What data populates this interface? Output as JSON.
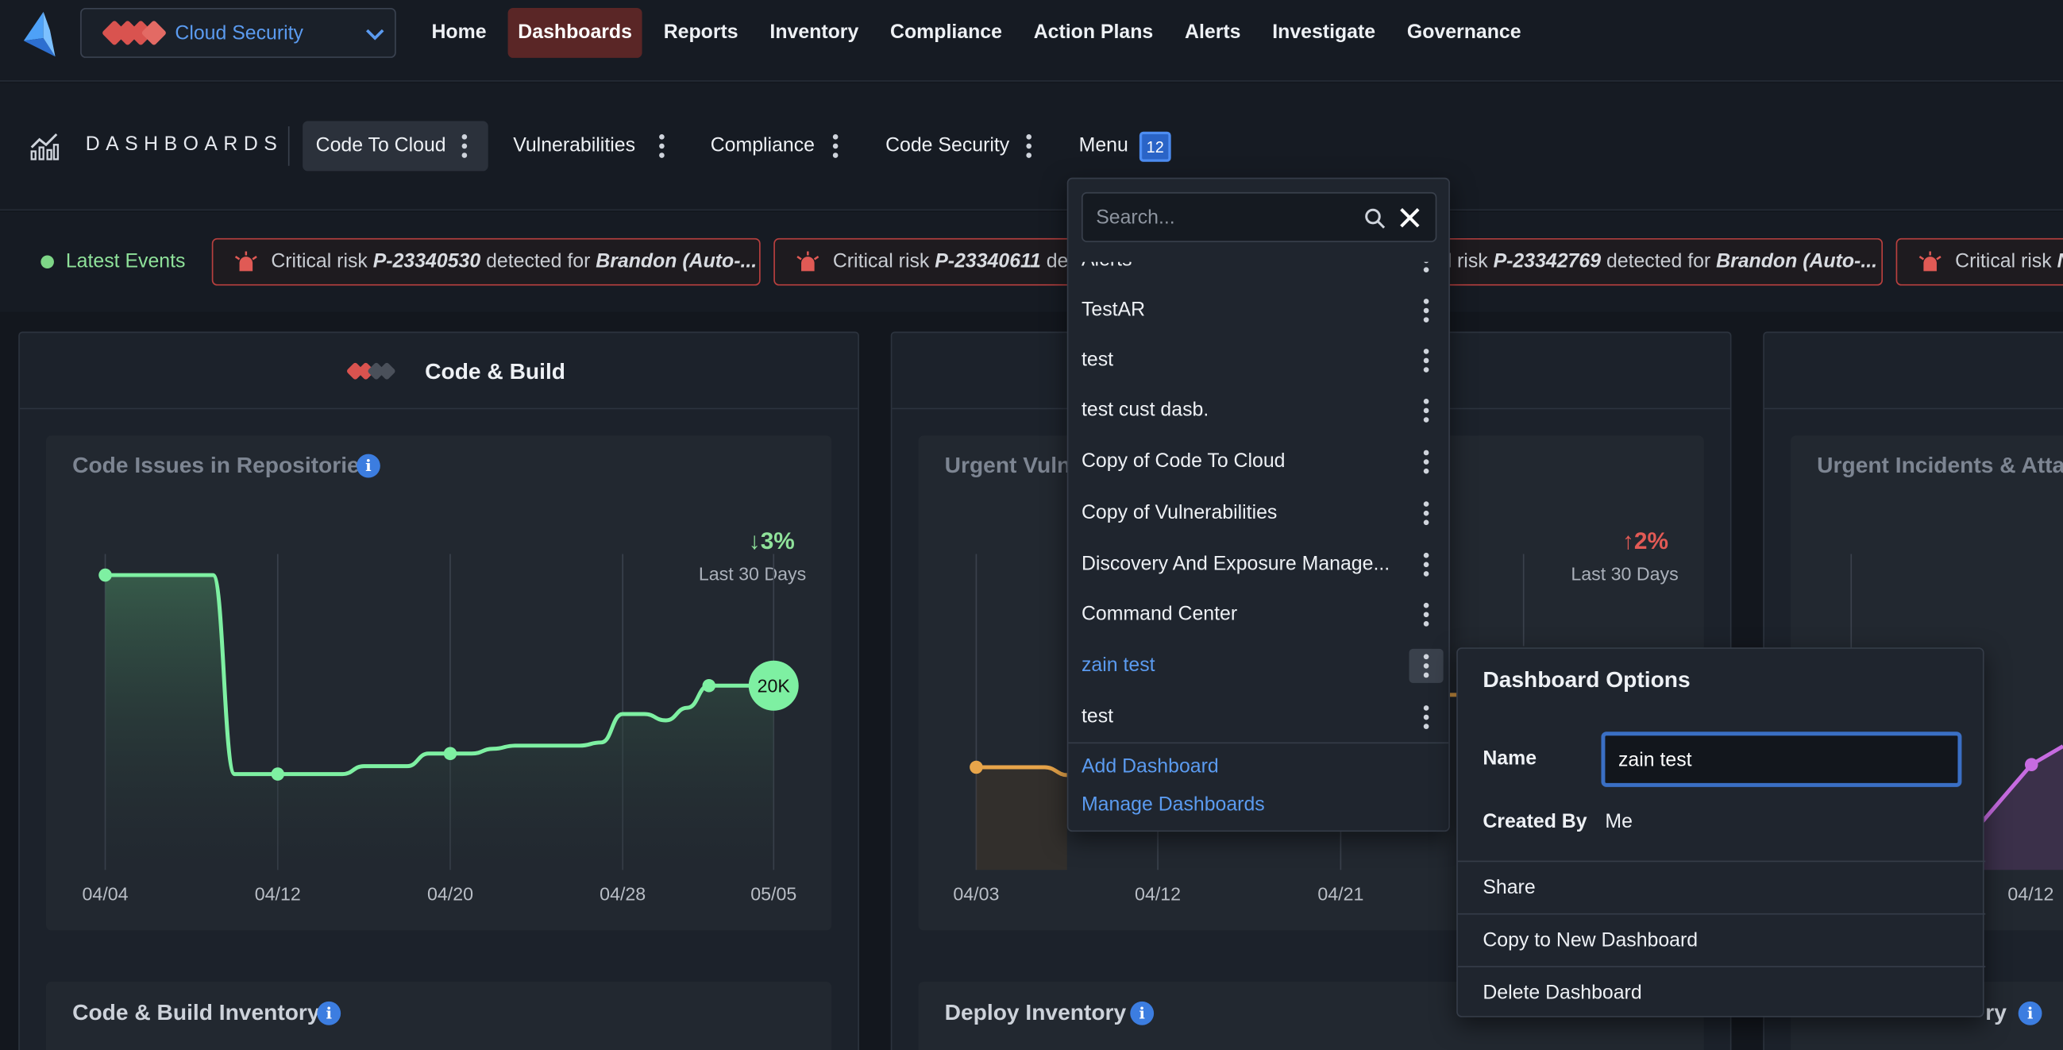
{
  "topnav": {
    "product_selector": {
      "label": "Cloud Security"
    },
    "items": [
      {
        "label": "Home",
        "active": false
      },
      {
        "label": "Dashboards",
        "active": true
      },
      {
        "label": "Reports",
        "active": false
      },
      {
        "label": "Inventory",
        "active": false
      },
      {
        "label": "Compliance",
        "active": false
      },
      {
        "label": "Action Plans",
        "active": false
      },
      {
        "label": "Alerts",
        "active": false
      },
      {
        "label": "Investigate",
        "active": false
      },
      {
        "label": "Governance",
        "active": false
      }
    ]
  },
  "dashboards_bar": {
    "title": "DASHBOARDS",
    "tabs": [
      {
        "label": "Code To Cloud",
        "active": true
      },
      {
        "label": "Vulnerabilities"
      },
      {
        "label": "Compliance"
      },
      {
        "label": "Code Security"
      },
      {
        "label": "Menu"
      }
    ],
    "menu_badge": "12"
  },
  "events": {
    "label": "Latest Events",
    "items": [
      {
        "prefix": "Critical risk ",
        "id": "P-23340530",
        "mid": " detected for ",
        "target": "Brandon (Auto-..."
      },
      {
        "prefix": "Critical risk ",
        "id": "P-23340611",
        "mid": " det",
        "target": ""
      },
      {
        "prefix": "l risk ",
        "id": "P-23342769",
        "mid": " detected for ",
        "target": "Brandon (Auto-..."
      },
      {
        "prefix": "Critical risk ",
        "id": "N",
        "mid": "",
        "target": ""
      }
    ]
  },
  "panels": {
    "code_build": {
      "title": "Code & Build",
      "card_title": "Code Issues in Repositories",
      "change": "3%",
      "period": "Last 30 Days",
      "bubble": "20K",
      "bottom_title": "Code & Build Inventory"
    },
    "deploy": {
      "card_title": "Urgent Vulne",
      "change": "2%",
      "period": "Last 30 Days",
      "bottom_title": "Deploy Inventory"
    },
    "runtime": {
      "card_title": "Urgent Incidents & Attac",
      "bottom_title": "ry"
    }
  },
  "chart_data": [
    {
      "type": "area",
      "title": "Code Issues in Repositories",
      "x_ticks": [
        "04/04",
        "04/12",
        "04/20",
        "04/28",
        "05/05"
      ],
      "x": [
        "04/04",
        "04/05",
        "04/06",
        "04/07",
        "04/08",
        "04/09",
        "04/10",
        "04/11",
        "04/12",
        "04/13",
        "04/14",
        "04/15",
        "04/16",
        "04/17",
        "04/18",
        "04/19",
        "04/20",
        "04/21",
        "04/22",
        "04/23",
        "04/24",
        "04/25",
        "04/26",
        "04/27",
        "04/28",
        "04/29",
        "04/30",
        "05/01",
        "05/02",
        "05/03",
        "05/04",
        "05/05"
      ],
      "series": [
        {
          "values": [
            27,
            27,
            27,
            27,
            27,
            27,
            14.4,
            14.4,
            14.4,
            14.4,
            14.4,
            14.4,
            14.9,
            14.9,
            14.9,
            15.7,
            15.7,
            15.7,
            16,
            16.2,
            16.2,
            16.2,
            16.2,
            16.4,
            18.2,
            18.2,
            17.8,
            18.6,
            20,
            20,
            20,
            20
          ]
        }
      ],
      "color": "#7ef0a2",
      "change": "3% down"
    },
    {
      "type": "line",
      "title": "Urgent Vulnerabilities",
      "x_ticks": [
        "04/03",
        "04/12",
        "04/21"
      ],
      "color": "#e8a54a",
      "change": "2% up"
    }
  ],
  "dashboard_menu": {
    "search_placeholder": "Search...",
    "items": [
      {
        "label": "Alerts"
      },
      {
        "label": "TestAR"
      },
      {
        "label": "test"
      },
      {
        "label": "test cust dasb."
      },
      {
        "label": "Copy of Code To Cloud"
      },
      {
        "label": "Copy of Vulnerabilities"
      },
      {
        "label": "Discovery And Exposure Manage..."
      },
      {
        "label": "Command Center"
      },
      {
        "label": "zain test",
        "selected": true
      },
      {
        "label": "test"
      }
    ],
    "add_label": "Add Dashboard",
    "manage_label": "Manage Dashboards"
  },
  "dashboard_options": {
    "title": "Dashboard Options",
    "name_label": "Name",
    "name_value": "zain test",
    "created_by_label": "Created By",
    "created_by_value": "Me",
    "actions": [
      "Share",
      "Copy to New Dashboard",
      "Delete Dashboard"
    ]
  },
  "colors": {
    "accent_blue": "#5b9bf0",
    "active_nav": "#5a2626",
    "green_line": "#7ef0a2",
    "critical_red": "#b9403f",
    "orange_line": "#e8a54a",
    "purple_line": "#c66be0"
  }
}
